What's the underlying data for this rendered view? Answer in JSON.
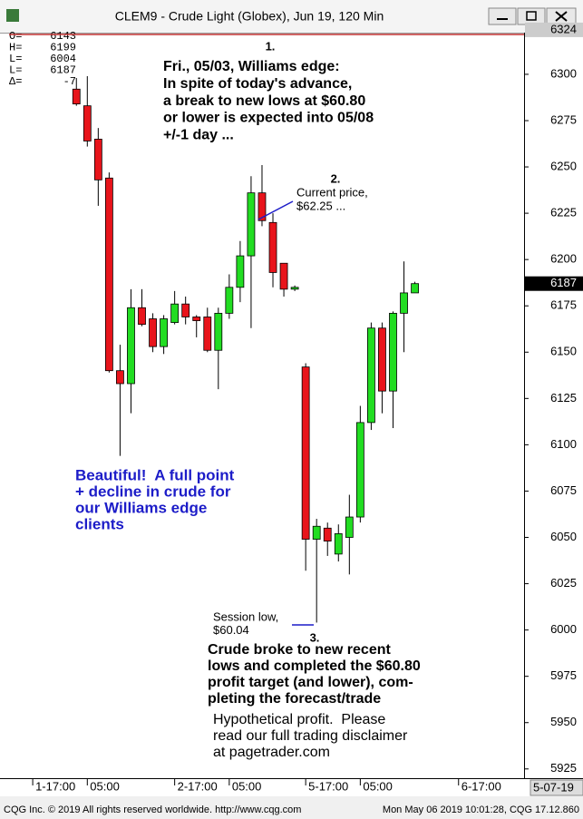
{
  "chart_data": {
    "type": "candlestick",
    "title": "CLEM9 - Crude Light (Globex), Jun 19, 120 Min",
    "info_panel": [
      {
        "label": "O=",
        "value": 6143
      },
      {
        "label": "H=",
        "value": 6199
      },
      {
        "label": "L=",
        "value": 6004
      },
      {
        "label": "L=",
        "value": 6187
      },
      {
        "label": "Δ=",
        "value": -7
      }
    ],
    "open": [
      6292,
      6283,
      6265,
      6244,
      6140,
      6133,
      6174,
      6168,
      6153,
      6166,
      6176,
      6169,
      6169,
      6151,
      6171,
      6185,
      6202,
      6236,
      6220,
      6198,
      6184,
      6142,
      6049,
      6055,
      6041,
      6050,
      6061,
      6112,
      6163,
      6129,
      6171,
      6182
    ],
    "high": [
      6298,
      6299,
      6271,
      6247,
      6154,
      6184,
      6184,
      6171,
      6170,
      6183,
      6180,
      6170,
      6174,
      6174,
      6192,
      6210,
      6245,
      6251,
      6225,
      6198,
      6186,
      6144,
      6060,
      6058,
      6057,
      6073,
      6121,
      6166,
      6166,
      6172,
      6199,
      6188
    ],
    "low": [
      6283,
      6261,
      6229,
      6139,
      6094,
      6117,
      6164,
      6150,
      6149,
      6165,
      6165,
      6158,
      6150,
      6130,
      6168,
      6177,
      6163,
      6218,
      6185,
      6180,
      6183,
      6032,
      6004,
      6040,
      6037,
      6030,
      6058,
      6108,
      6117,
      6109,
      6150,
      6182
    ],
    "close": [
      6284,
      6264,
      6243,
      6140,
      6133,
      6174,
      6165,
      6153,
      6168,
      6176,
      6169,
      6167,
      6151,
      6171,
      6185,
      6202,
      6236,
      6221,
      6193,
      6184,
      6185,
      6049,
      6056,
      6048,
      6052,
      6061,
      6112,
      6163,
      6129,
      6171,
      6182,
      6187
    ],
    "up_color": "#22dd22",
    "down_color": "#e8141b",
    "xlim": [
      -6,
      41
    ],
    "xticks": [
      {
        "value": -4,
        "label": "1-17:00"
      },
      {
        "value": 1,
        "label": "05:00"
      },
      {
        "value": 9,
        "label": "2-17:00"
      },
      {
        "value": 14,
        "label": "05:00"
      },
      {
        "value": 21,
        "label": "5-17:00"
      },
      {
        "value": 26,
        "label": "05:00"
      },
      {
        "value": 35,
        "label": "6-17:00"
      }
    ],
    "date_label": "5-07-19",
    "ylim": [
      5920,
      6322
    ],
    "yticks": [
      5925,
      5950,
      5975,
      6000,
      6025,
      6050,
      6075,
      6100,
      6125,
      6150,
      6175,
      6200,
      6225,
      6250,
      6275,
      6300
    ],
    "last_price": 6187,
    "ref_price": 6324,
    "annotations": {
      "forecast_number": "1.",
      "forecast": [
        "Fri., 05/03, Williams edge:",
        "In spite of today's advance,",
        "a break to new lows at $60.80",
        "or lower is expected into 05/08",
        "+/-1 day ..."
      ],
      "current_number": "2.",
      "current": [
        "Current price,",
        "$62.25 ..."
      ],
      "beautiful": [
        "Beautiful!  A full point",
        "+ decline in crude for",
        "our Williams edge",
        "clients"
      ],
      "session_low": [
        "Session low,",
        "$60.04"
      ],
      "result_number": "3.",
      "result": [
        "Crude broke to new recent",
        "lows and completed the $60.80",
        "profit target (and lower), com-",
        "pleting the forecast/trade"
      ],
      "disclaimer": [
        "Hypothetical profit.  Please",
        "read our full trading disclaimer",
        "at pagetrader.com"
      ]
    },
    "footer_left": "CQG Inc. © 2019 All rights reserved worldwide. http://www.cqg.com",
    "footer_right": "Mon May 06 2019 10:01:28, CQG 17.12.860"
  }
}
